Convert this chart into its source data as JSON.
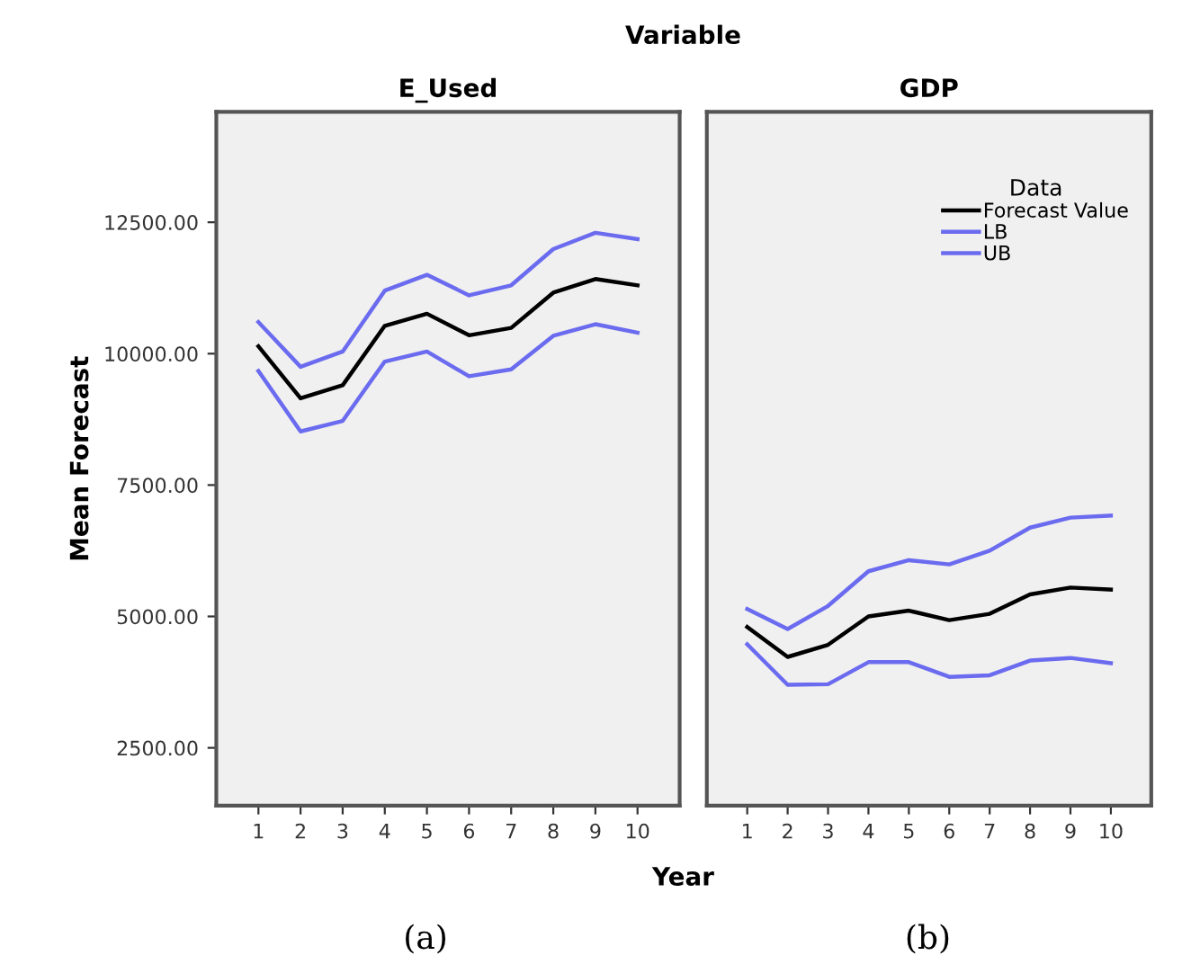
{
  "chart_data": [
    {
      "type": "line",
      "title": "E_Used",
      "ylabel": "Mean Forecast",
      "xlabel": "Year",
      "annotations": [
        "Variable",
        "(a)"
      ],
      "x": [
        1,
        2,
        3,
        4,
        5,
        6,
        7,
        8,
        9,
        10
      ],
      "xlim": [
        0,
        11
      ],
      "xticks": [
        1,
        2,
        3,
        4,
        5,
        6,
        7,
        8,
        9,
        10
      ],
      "ylim": [
        1400,
        14600
      ],
      "yticks": [
        {
          "value": 2500,
          "label": "2500.00"
        },
        {
          "value": 5000,
          "label": "5000.00"
        },
        {
          "value": 7500,
          "label": "7500.00"
        },
        {
          "value": 10000,
          "label": "10000.00"
        },
        {
          "value": 12500,
          "label": "12500.00"
        }
      ],
      "grid": false,
      "legend": false,
      "series": [
        {
          "color": "#000000",
          "values": [
            10140,
            9150,
            9400,
            10530,
            10760,
            10350,
            10490,
            11160,
            11420,
            11300
          ]
        },
        {
          "color": "#6b6bf0",
          "values": [
            9670,
            8520,
            8720,
            9850,
            10040,
            9570,
            9700,
            10340,
            10560,
            10400
          ]
        },
        {
          "color": "#6b6bf0",
          "values": [
            10600,
            9750,
            10040,
            11200,
            11500,
            11110,
            11300,
            11990,
            12300,
            12180
          ]
        }
      ]
    },
    {
      "type": "line",
      "title": "GDP",
      "annotations": [
        "(b)"
      ],
      "legend_title": "Data",
      "legend": "top right",
      "tick_labels": "x",
      "x": [
        1,
        2,
        3,
        4,
        5,
        6,
        7,
        8,
        9,
        10
      ],
      "xlim": [
        0,
        11
      ],
      "xticks": [
        1,
        2,
        3,
        4,
        5,
        6,
        7,
        8,
        9,
        10
      ],
      "ylim": [
        1400,
        14600
      ],
      "grid": false,
      "series": [
        {
          "name": "Forecast Value",
          "color": "#000000",
          "values": [
            4800,
            4230,
            4460,
            5000,
            5110,
            4930,
            5050,
            5420,
            5550,
            5510
          ]
        },
        {
          "name": "LB",
          "color": "#6b6bf0",
          "values": [
            4470,
            3700,
            3710,
            4130,
            4130,
            3850,
            3880,
            4160,
            4210,
            4110
          ]
        },
        {
          "name": "UB",
          "color": "#6b6bf0",
          "values": [
            5140,
            4760,
            5200,
            5860,
            6070,
            5990,
            6250,
            6690,
            6880,
            6920
          ]
        }
      ]
    }
  ]
}
